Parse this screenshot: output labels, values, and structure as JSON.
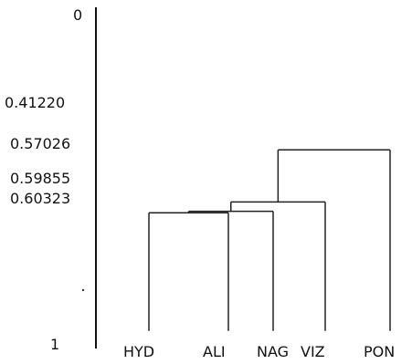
{
  "diagram": {
    "type": "dendrogram",
    "axis": {
      "top_label": "0",
      "bottom_label": "1",
      "min": 0,
      "max": 1
    },
    "ticks": [
      {
        "label": "0.41220",
        "value": 0.4122
      },
      {
        "label": "0.57026",
        "value": 0.57026
      },
      {
        "label": "0.59855",
        "value": 0.59855
      },
      {
        "label": "0.60323",
        "value": 0.60323
      }
    ],
    "leaves": [
      "HYD",
      "ALI",
      "NAG",
      "VIZ",
      "PON"
    ],
    "merges": [
      {
        "left": "HYD",
        "right": "ALI",
        "value": 0.60323
      },
      {
        "left": "HYD+ALI",
        "right": "NAG",
        "value": 0.59855
      },
      {
        "left": "HYD+ALI+NAG",
        "right": "VIZ",
        "value": 0.57026
      },
      {
        "left": "HYD+ALI+NAG+VIZ",
        "right": "PON",
        "value": 0.4122
      }
    ],
    "leaf_baseline_value": 0.962,
    "colors": {
      "lines": "#222222",
      "text": "#111111",
      "background": "#ffffff"
    }
  }
}
